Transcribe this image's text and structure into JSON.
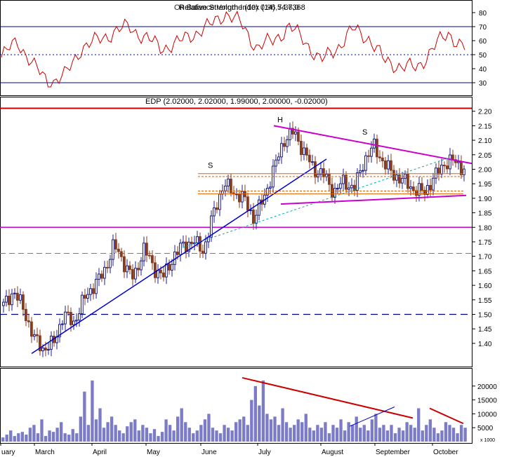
{
  "colors": {
    "price_up": "#1c1c8c",
    "price_down": "#8b3a1a",
    "rsi_line": "#cc0000",
    "volume": "#7b7bc8",
    "trendline": "#0000cc",
    "resistance": "#cc0000",
    "triangle": "#cc00cc",
    "orange": "#e06000",
    "dash_blue": "#000088",
    "cyan": "#00aaaa"
  },
  "rsi_panel": {
    "title": "Relative Strength Index (14) 54.7368",
    "overlay_title": "On Balance Volume (10) 0.96,7,36,0",
    "ylim": [
      25,
      85
    ],
    "ticks": [
      "80",
      "70",
      "60",
      "50",
      "40",
      "30"
    ]
  },
  "price_panel": {
    "title": "EDP (2.02000, 2.02000, 1.99000, 2.00000, -0.02000)",
    "ylim": [
      1.32,
      2.25
    ],
    "ticks": [
      "2.20",
      "2.15",
      "2.10",
      "2.05",
      "2.00",
      "1.95",
      "1.90",
      "1.85",
      "1.80",
      "1.75",
      "1.70",
      "1.65",
      "1.60",
      "1.55",
      "1.50",
      "1.45",
      "1.40"
    ],
    "annotations": [
      "S",
      "H",
      "S"
    ]
  },
  "volume_panel": {
    "ylim": [
      0,
      25000
    ],
    "ticks": [
      "20000",
      "15000",
      "10000",
      "5000"
    ],
    "unit": "x 1000"
  },
  "x_axis": {
    "labels": [
      "uary",
      "March",
      "April",
      "May",
      "June",
      "July",
      "August",
      "September",
      "October"
    ]
  },
  "chart_data": {
    "type": "candlestick",
    "title": "EDP (2.02000, 2.02000, 1.99000, 2.00000, -0.02000)",
    "months": [
      "uary",
      "March",
      "April",
      "May",
      "June",
      "July",
      "August",
      "September",
      "October"
    ],
    "price_key_levels": {
      "resistance": 2.21,
      "support_magenta": 1.8,
      "orange_dashed": 1.71,
      "blue_dashed": 1.5
    },
    "price_path": [
      [
        "uary",
        1.53
      ],
      [
        "uary",
        1.58
      ],
      [
        "uary",
        1.52
      ],
      [
        "March",
        1.42
      ],
      [
        "March",
        1.38
      ],
      [
        "March",
        1.4
      ],
      [
        "March",
        1.5
      ],
      [
        "March",
        1.47
      ],
      [
        "March",
        1.55
      ],
      [
        "March",
        1.6
      ],
      [
        "April",
        1.64
      ],
      [
        "April",
        1.74
      ],
      [
        "April",
        1.68
      ],
      [
        "April",
        1.62
      ],
      [
        "April",
        1.73
      ],
      [
        "April",
        1.66
      ],
      [
        "May",
        1.63
      ],
      [
        "May",
        1.7
      ],
      [
        "May",
        1.74
      ],
      [
        "May",
        1.75
      ],
      [
        "May",
        1.72
      ],
      [
        "June",
        1.85
      ],
      [
        "June",
        1.95
      ],
      [
        "June",
        1.92
      ],
      [
        "June",
        1.9
      ],
      [
        "June",
        1.83
      ],
      [
        "June",
        1.9
      ],
      [
        "July",
        2.0
      ],
      [
        "July",
        2.1
      ],
      [
        "July",
        2.13
      ],
      [
        "July",
        2.06
      ],
      [
        "July",
        2.0
      ],
      [
        "July",
        1.98
      ],
      [
        "August",
        1.92
      ],
      [
        "August",
        1.96
      ],
      [
        "August",
        1.93
      ],
      [
        "August",
        2.03
      ],
      [
        "August",
        2.08
      ],
      [
        "September",
        2.02
      ],
      [
        "September",
        1.98
      ],
      [
        "September",
        1.96
      ],
      [
        "September",
        1.93
      ],
      [
        "September",
        1.92
      ],
      [
        "October",
        1.97
      ],
      [
        "October",
        2.02
      ],
      [
        "October",
        2.03
      ],
      [
        "October",
        2.0
      ]
    ],
    "rsi_series": [
      [
        "uary",
        48
      ],
      [
        "uary",
        60
      ],
      [
        "uary",
        42
      ],
      [
        "March",
        30
      ],
      [
        "March",
        35
      ],
      [
        "March",
        55
      ],
      [
        "March",
        60
      ],
      [
        "April",
        66
      ],
      [
        "April",
        70
      ],
      [
        "April",
        62
      ],
      [
        "May",
        55
      ],
      [
        "May",
        58
      ],
      [
        "May",
        65
      ],
      [
        "June",
        70
      ],
      [
        "June",
        80
      ],
      [
        "June",
        72
      ],
      [
        "June",
        55
      ],
      [
        "July",
        60
      ],
      [
        "July",
        70
      ],
      [
        "July",
        60
      ],
      [
        "August",
        45
      ],
      [
        "August",
        55
      ],
      [
        "August",
        68
      ],
      [
        "August",
        62
      ],
      [
        "September",
        45
      ],
      [
        "September",
        42
      ],
      [
        "September",
        40
      ],
      [
        "October",
        55
      ],
      [
        "October",
        65
      ],
      [
        "October",
        55
      ]
    ],
    "volume_series": [
      1500,
      2500,
      4000,
      2000,
      3000,
      3500,
      2500,
      5000,
      6000,
      3000,
      8000,
      2000,
      4000,
      3500,
      5000,
      7000,
      3000,
      2500,
      4500,
      3000,
      9000,
      18000,
      6000,
      22000,
      8000,
      12000,
      5000,
      7000,
      9000,
      6000,
      4000,
      3000,
      5500,
      7000,
      8000,
      4000,
      6000,
      5000,
      3000,
      4500,
      2000,
      3500,
      8000,
      6000,
      4000,
      9000,
      12000,
      7000,
      5000,
      3000,
      4000,
      6000,
      8000,
      10000,
      5000,
      4000,
      3000,
      6000,
      5000,
      4000,
      7000,
      8000,
      9000,
      6000,
      15000,
      20000,
      13000,
      22000,
      10000,
      8000,
      9000,
      6000,
      12000,
      7000,
      5000,
      6000,
      8000,
      7000,
      10000,
      5000,
      4000,
      6000,
      5000,
      7000,
      3000,
      6000,
      5000,
      8000,
      4000,
      7000,
      6000,
      9000,
      5000,
      6000,
      4000,
      8000,
      10000,
      5000,
      6000,
      4000,
      6000,
      3000,
      5000,
      4000,
      7000,
      6000,
      5000,
      12000,
      4000,
      6000,
      8000,
      5000,
      3000,
      4000,
      7000,
      6000,
      5000,
      3000,
      6000,
      5000
    ]
  }
}
